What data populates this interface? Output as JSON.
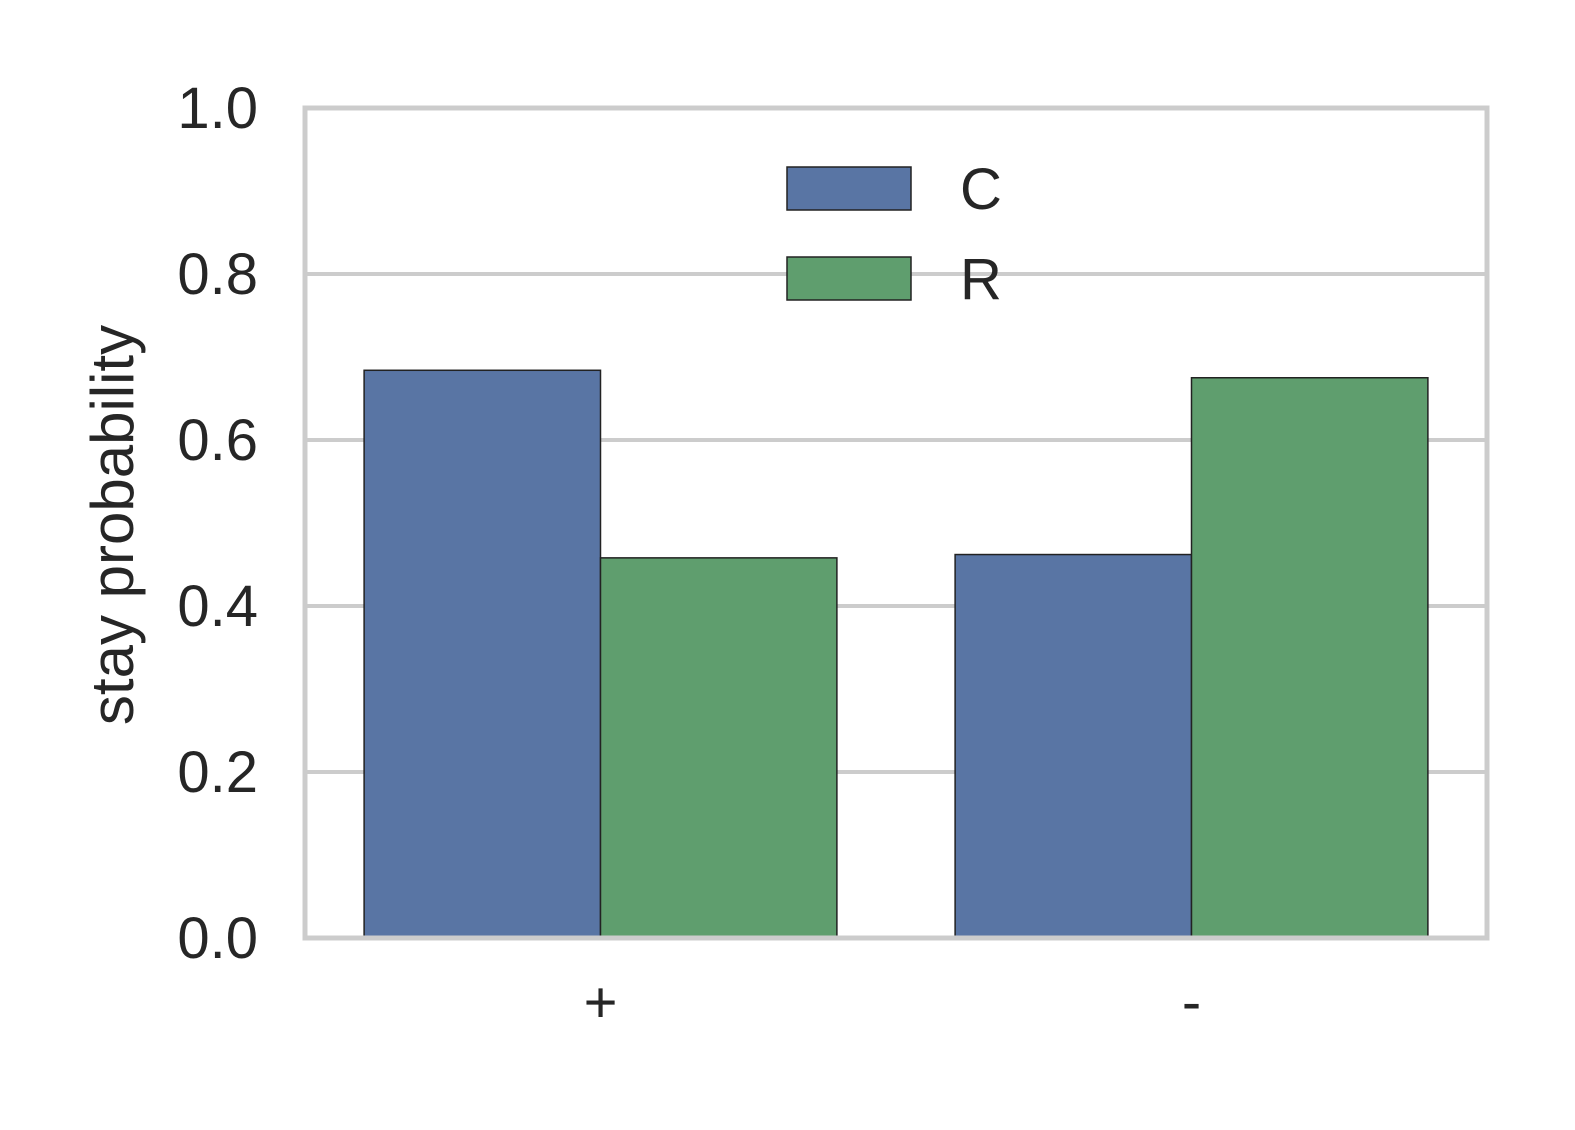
{
  "chart_data": {
    "type": "bar",
    "title": "",
    "xlabel": "",
    "ylabel": "stay probability",
    "categories": [
      "+",
      "-"
    ],
    "series": [
      {
        "name": "C",
        "values": [
          0.684,
          0.462
        ]
      },
      {
        "name": "R",
        "values": [
          0.458,
          0.675
        ]
      }
    ],
    "ylim": [
      0,
      1.0
    ],
    "yticks": [
      "0.0",
      "0.2",
      "0.4",
      "0.6",
      "0.8",
      "1.0"
    ],
    "ytick_values": [
      0,
      0.2,
      0.4,
      0.6,
      0.8,
      1.0
    ],
    "grid": true,
    "legend_position": "top-center",
    "colors": {
      "C": "#5975a4",
      "R": "#5f9e6e",
      "grid": "#cccccc",
      "frame": "#cccccc",
      "bar_edge": "#222222",
      "text": "#262626"
    }
  }
}
